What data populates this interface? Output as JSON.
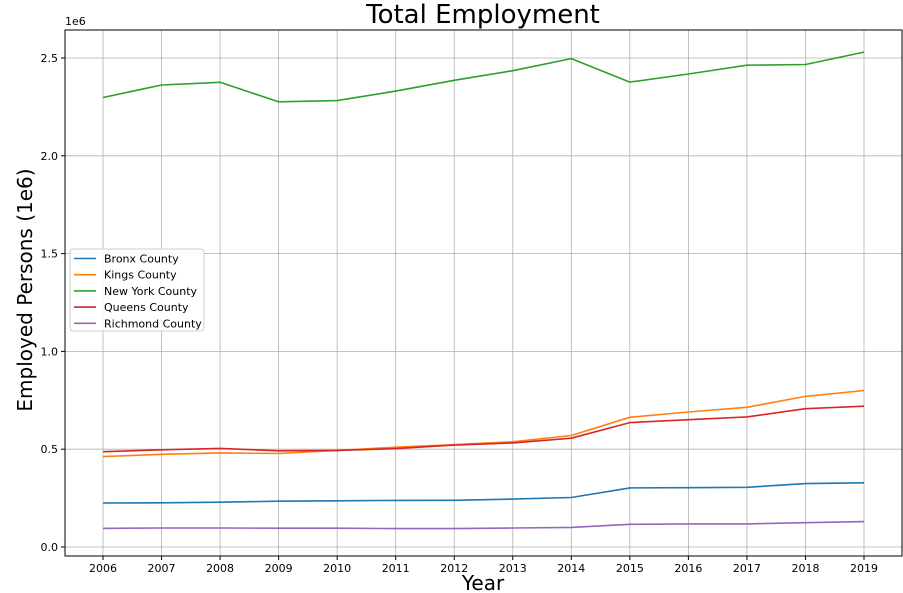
{
  "chart_data": {
    "type": "line",
    "title": "Total Employment",
    "xlabel": "Year",
    "ylabel": "Employed Persons (1e6)",
    "y_offset_text": "1e6",
    "x": [
      2006,
      2007,
      2008,
      2009,
      2010,
      2011,
      2012,
      2013,
      2014,
      2015,
      2016,
      2017,
      2018,
      2019
    ],
    "ylim": [
      0,
      2.6
    ],
    "yticks": [
      "0.0",
      "0.5",
      "1.0",
      "1.5",
      "2.0",
      "2.5"
    ],
    "ytick_values": [
      0,
      0.5,
      1.0,
      1.5,
      2.0,
      2.5
    ],
    "grid": true,
    "legend_position": "center-left",
    "series": [
      {
        "name": "Bronx County",
        "color": "#1f77b4",
        "values": [
          0.225,
          0.226,
          0.229,
          0.234,
          0.236,
          0.238,
          0.239,
          0.245,
          0.253,
          0.302,
          0.303,
          0.305,
          0.324,
          0.328
        ]
      },
      {
        "name": "Kings County",
        "color": "#ff7f0e",
        "values": [
          0.462,
          0.474,
          0.481,
          0.478,
          0.494,
          0.51,
          0.523,
          0.538,
          0.57,
          0.663,
          0.69,
          0.714,
          0.77,
          0.8
        ]
      },
      {
        "name": "New York County",
        "color": "#2ca02c",
        "values": [
          2.298,
          2.362,
          2.376,
          2.276,
          2.282,
          2.331,
          2.386,
          2.435,
          2.497,
          2.377,
          2.418,
          2.463,
          2.467,
          2.53
        ]
      },
      {
        "name": "Queens County",
        "color": "#d62728",
        "values": [
          0.487,
          0.497,
          0.504,
          0.492,
          0.494,
          0.503,
          0.521,
          0.532,
          0.556,
          0.636,
          0.651,
          0.665,
          0.707,
          0.72
        ]
      },
      {
        "name": "Richmond County",
        "color": "#9467bd",
        "values": [
          0.095,
          0.097,
          0.097,
          0.096,
          0.096,
          0.094,
          0.094,
          0.097,
          0.1,
          0.116,
          0.118,
          0.118,
          0.124,
          0.13
        ]
      }
    ]
  }
}
